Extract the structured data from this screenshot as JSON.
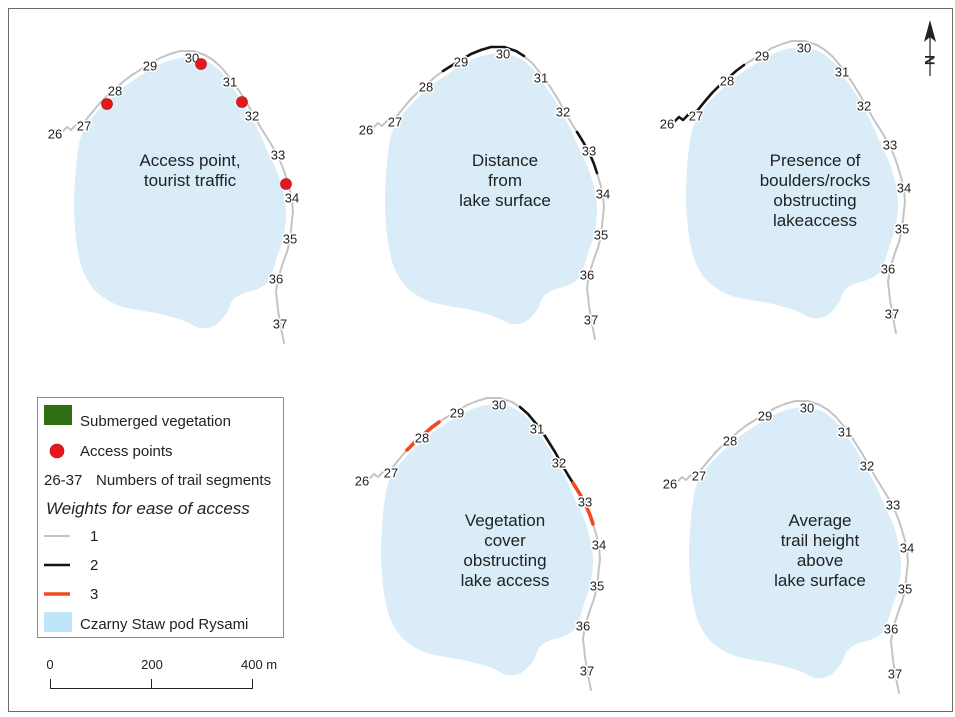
{
  "figure": {
    "trail_segments": [
      "26",
      "27",
      "28",
      "29",
      "30",
      "31",
      "32",
      "33",
      "34",
      "35",
      "36",
      "37"
    ],
    "panels": [
      {
        "label_lines": [
          "Access point,",
          "tourist traffic"
        ],
        "weights": [
          1,
          1,
          1,
          1,
          1,
          1,
          1,
          1,
          1,
          1,
          1,
          1
        ]
      },
      {
        "label_lines": [
          "Distance",
          "from",
          "lake surface"
        ],
        "weights": [
          1,
          1,
          1,
          2,
          2,
          1,
          1,
          2,
          1,
          1,
          1,
          1
        ]
      },
      {
        "label_lines": [
          "Presence of",
          "boulders/rocks",
          "obstructing",
          "lakeaccess"
        ],
        "weights": [
          2,
          2,
          2,
          1,
          1,
          1,
          1,
          1,
          1,
          1,
          1,
          1
        ]
      },
      {
        "label_lines": [
          "Vegetation",
          "cover",
          "obstructing",
          "lake access"
        ],
        "weights": [
          1,
          1,
          3,
          1,
          1,
          2,
          2,
          3,
          1,
          1,
          1,
          1
        ]
      },
      {
        "label_lines": [
          "Average",
          "trail height",
          "above",
          "lake surface"
        ],
        "weights": [
          1,
          1,
          1,
          1,
          1,
          1,
          1,
          1,
          1,
          1,
          1,
          1
        ]
      }
    ]
  },
  "legend": {
    "submerged_vegetation": "Submerged vegetation",
    "access_points": "Access points",
    "segments_code": "26-37",
    "segments_label": "Numbers of trail segments",
    "weights_title": "Weights for ease of access",
    "weights": [
      "1",
      "2",
      "3"
    ],
    "lake": "Czarny Staw pod Rysami"
  },
  "scale_bar": {
    "labels": [
      "0",
      "200",
      "400 m"
    ]
  },
  "north_arrow": {
    "label": "N"
  },
  "colors": {
    "lake": "#d9ecf8",
    "lake_legend": "#bee6f8",
    "vegetation": "#2f6f14",
    "access_point": "#e8171d",
    "weight_1": "#c4c4c4",
    "weight_2": "#141414",
    "weight_3": "#f04a22"
  }
}
